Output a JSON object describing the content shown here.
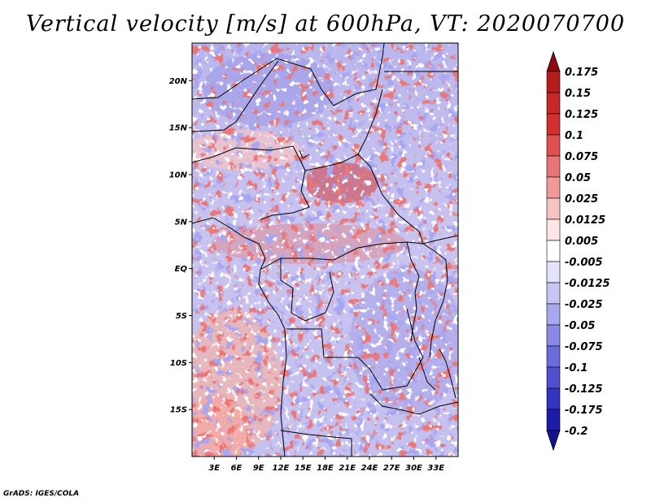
{
  "title": "Vertical velocity [m/s] at 600hPa, VT: 2020070700",
  "credit": "GrADS: IGES/COLA",
  "map": {
    "lon_range": [
      0,
      36
    ],
    "lat_range": [
      -20,
      24
    ],
    "lat_ticks": [
      {
        "value": 20,
        "label": "20N"
      },
      {
        "value": 15,
        "label": "15N"
      },
      {
        "value": 10,
        "label": "10N"
      },
      {
        "value": 5,
        "label": "5N"
      },
      {
        "value": 0,
        "label": "EQ"
      },
      {
        "value": -5,
        "label": "5S"
      },
      {
        "value": -10,
        "label": "10S"
      },
      {
        "value": -15,
        "label": "15S"
      }
    ],
    "lon_ticks": [
      {
        "value": 3,
        "label": "3E"
      },
      {
        "value": 6,
        "label": "6E"
      },
      {
        "value": 9,
        "label": "9E"
      },
      {
        "value": 12,
        "label": "12E"
      },
      {
        "value": 15,
        "label": "15E"
      },
      {
        "value": 18,
        "label": "18E"
      },
      {
        "value": 21,
        "label": "21E"
      },
      {
        "value": 24,
        "label": "24E"
      },
      {
        "value": 27,
        "label": "27E"
      },
      {
        "value": 30,
        "label": "30E"
      },
      {
        "value": 33,
        "label": "33E"
      }
    ]
  },
  "colorbar": {
    "levels": [
      {
        "label": "0.175",
        "color": "#a50f15"
      },
      {
        "label": "0.15",
        "color": "#b71c1c"
      },
      {
        "label": "0.125",
        "color": "#c62828"
      },
      {
        "label": "0.1",
        "color": "#d32f2f"
      },
      {
        "label": "0.075",
        "color": "#e05050"
      },
      {
        "label": "0.05",
        "color": "#e87575"
      },
      {
        "label": "0.025",
        "color": "#f09a9a"
      },
      {
        "label": "0.0125",
        "color": "#f7c4c4"
      },
      {
        "label": "0.005",
        "color": "#fce6e6"
      },
      {
        "label": "-0.005",
        "color": "#ffffff"
      },
      {
        "label": "-0.0125",
        "color": "#e3e3fb"
      },
      {
        "label": "-0.025",
        "color": "#c6c6f5"
      },
      {
        "label": "-0.05",
        "color": "#a8a8ef"
      },
      {
        "label": "-0.075",
        "color": "#8a8ae6"
      },
      {
        "label": "-0.1",
        "color": "#6b6bdc"
      },
      {
        "label": "-0.125",
        "color": "#4f4fcf"
      },
      {
        "label": "-0.175",
        "color": "#3434c0"
      },
      {
        "label": "-0.2",
        "color": "#1c1ca8"
      }
    ],
    "top_cap_color": "#8b0a10",
    "bottom_cap_color": "#12128f"
  }
}
